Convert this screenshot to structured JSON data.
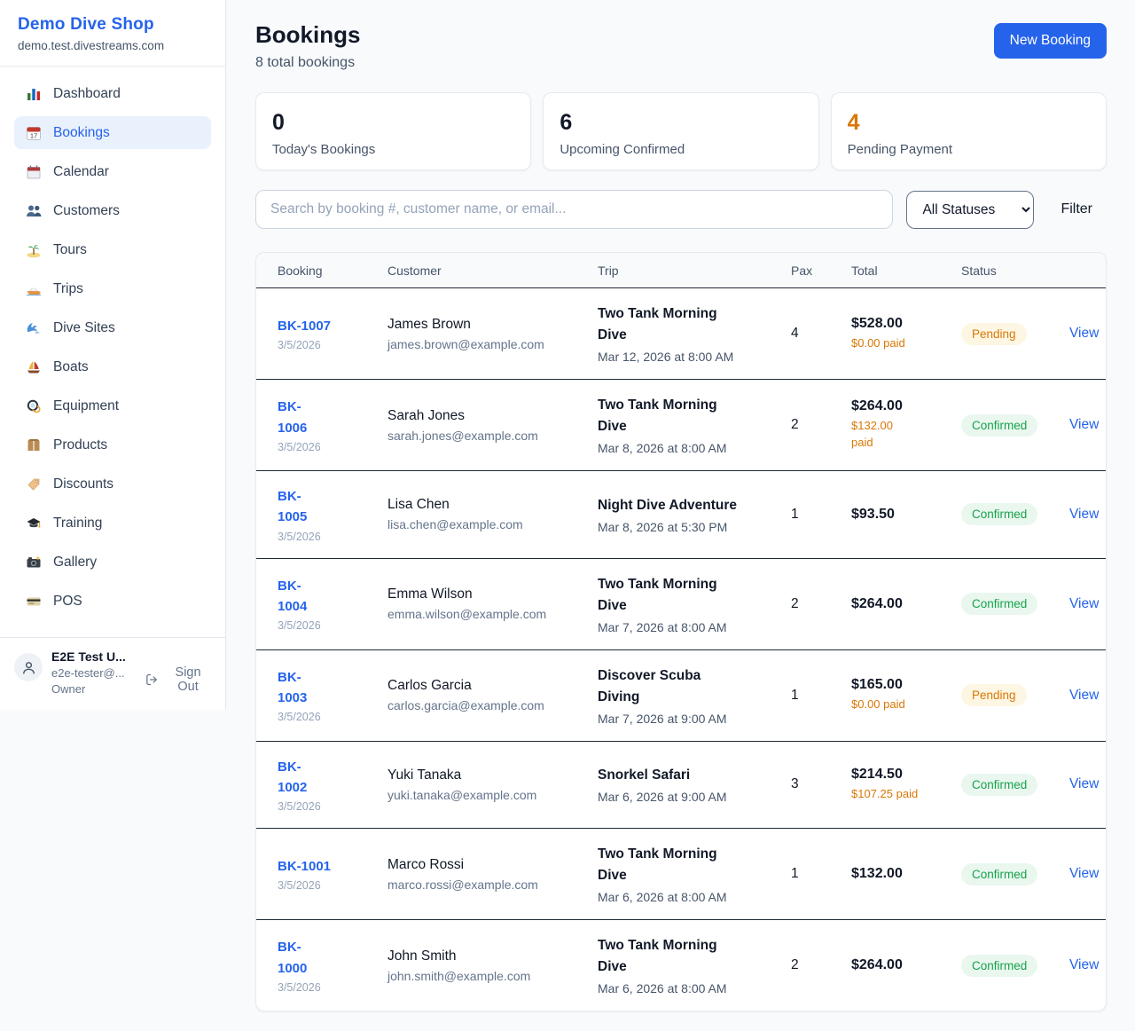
{
  "sidebar": {
    "brand": {
      "name": "Demo Dive Shop",
      "domain": "demo.test.divestreams.com"
    },
    "items": [
      {
        "label": "Dashboard",
        "icon": "bar-chart-icon",
        "active": false
      },
      {
        "label": "Bookings",
        "icon": "calendar-icon",
        "active": true
      },
      {
        "label": "Calendar",
        "icon": "spiral-calendar-icon",
        "active": false
      },
      {
        "label": "Customers",
        "icon": "people-icon",
        "active": false
      },
      {
        "label": "Tours",
        "icon": "island-icon",
        "active": false
      },
      {
        "label": "Trips",
        "icon": "speedboat-icon",
        "active": false
      },
      {
        "label": "Dive Sites",
        "icon": "wave-icon",
        "active": false
      },
      {
        "label": "Boats",
        "icon": "sailboat-icon",
        "active": false
      },
      {
        "label": "Equipment",
        "icon": "diving-mask-icon",
        "active": false
      },
      {
        "label": "Products",
        "icon": "package-icon",
        "active": false
      },
      {
        "label": "Discounts",
        "icon": "tag-icon",
        "active": false
      },
      {
        "label": "Training",
        "icon": "graduation-cap-icon",
        "active": false
      },
      {
        "label": "Gallery",
        "icon": "camera-icon",
        "active": false
      },
      {
        "label": "POS",
        "icon": "credit-card-icon",
        "active": false
      }
    ],
    "user": {
      "name": "E2E Test U...",
      "email": "e2e-tester@...",
      "role": "Owner",
      "sign_out_label": "Sign Out"
    }
  },
  "header": {
    "title": "Bookings",
    "subtitle": "8 total bookings",
    "new_booking_label": "New Booking"
  },
  "stats": [
    {
      "value": "0",
      "label": "Today's Bookings",
      "value_color": "#111827"
    },
    {
      "value": "6",
      "label": "Upcoming Confirmed",
      "value_color": "#111827"
    },
    {
      "value": "4",
      "label": "Pending Payment",
      "value_color": "#d97706"
    }
  ],
  "filters": {
    "search_placeholder": "Search by booking #, customer name, or email...",
    "status_selected": "All Statuses",
    "filter_label": "Filter"
  },
  "table": {
    "columns": [
      "Booking",
      "Customer",
      "Trip",
      "Pax",
      "Total",
      "Status",
      ""
    ],
    "rows": [
      {
        "id": "BK-1007",
        "id_wrap": false,
        "date": "3/5/2026",
        "customer": "James Brown",
        "email": "james.brown@example.com",
        "trip": "Two Tank Morning\nDive",
        "trip_when": "Mar 12, 2026 at 8:00 AM",
        "pax": "4",
        "total": "$528.00",
        "paid": "$0.00 paid",
        "status": "Pending",
        "action": "View"
      },
      {
        "id": "BK-1006",
        "id_wrap": true,
        "date": "3/5/2026",
        "customer": "Sarah Jones",
        "email": "sarah.jones@example.com",
        "trip": "Two Tank Morning\nDive",
        "trip_when": "Mar 8, 2026 at 8:00 AM",
        "pax": "2",
        "total": "$264.00",
        "paid": "$132.00\npaid",
        "status": "Confirmed",
        "action": "View"
      },
      {
        "id": "BK-1005",
        "id_wrap": true,
        "date": "3/5/2026",
        "customer": "Lisa Chen",
        "email": "lisa.chen@example.com",
        "trip": "Night Dive Adventure",
        "trip_when": "Mar 8, 2026 at 5:30 PM",
        "pax": "1",
        "total": "$93.50",
        "paid": "",
        "status": "Confirmed",
        "action": "View"
      },
      {
        "id": "BK-1004",
        "id_wrap": true,
        "date": "3/5/2026",
        "customer": "Emma Wilson",
        "email": "emma.wilson@example.com",
        "trip": "Two Tank Morning\nDive",
        "trip_when": "Mar 7, 2026 at 8:00 AM",
        "pax": "2",
        "total": "$264.00",
        "paid": "",
        "status": "Confirmed",
        "action": "View"
      },
      {
        "id": "BK-1003",
        "id_wrap": true,
        "date": "3/5/2026",
        "customer": "Carlos Garcia",
        "email": "carlos.garcia@example.com",
        "trip": "Discover Scuba\nDiving",
        "trip_when": "Mar 7, 2026 at 9:00 AM",
        "pax": "1",
        "total": "$165.00",
        "paid": "$0.00 paid",
        "status": "Pending",
        "action": "View"
      },
      {
        "id": "BK-1002",
        "id_wrap": true,
        "date": "3/5/2026",
        "customer": "Yuki Tanaka",
        "email": "yuki.tanaka@example.com",
        "trip": "Snorkel Safari",
        "trip_when": "Mar 6, 2026 at 9:00 AM",
        "pax": "3",
        "total": "$214.50",
        "paid": "$107.25 paid",
        "status": "Confirmed",
        "action": "View"
      },
      {
        "id": "BK-1001",
        "id_wrap": false,
        "date": "3/5/2026",
        "customer": "Marco Rossi",
        "email": "marco.rossi@example.com",
        "trip": "Two Tank Morning\nDive",
        "trip_when": "Mar 6, 2026 at 8:00 AM",
        "pax": "1",
        "total": "$132.00",
        "paid": "",
        "status": "Confirmed",
        "action": "View"
      },
      {
        "id": "BK-1000",
        "id_wrap": true,
        "date": "3/5/2026",
        "customer": "John Smith",
        "email": "john.smith@example.com",
        "trip": "Two Tank Morning\nDive",
        "trip_when": "Mar 6, 2026 at 8:00 AM",
        "pax": "2",
        "total": "$264.00",
        "paid": "",
        "status": "Confirmed",
        "action": "View"
      }
    ]
  },
  "colors": {
    "accent": "#2563eb",
    "page_background": "#f8fafc",
    "pending_text": "#d97706",
    "pending_background": "#fdf6e3",
    "confirmed_text": "#16a34a",
    "confirmed_background": "#e9f7ef",
    "row_divider": "#1f2937"
  }
}
